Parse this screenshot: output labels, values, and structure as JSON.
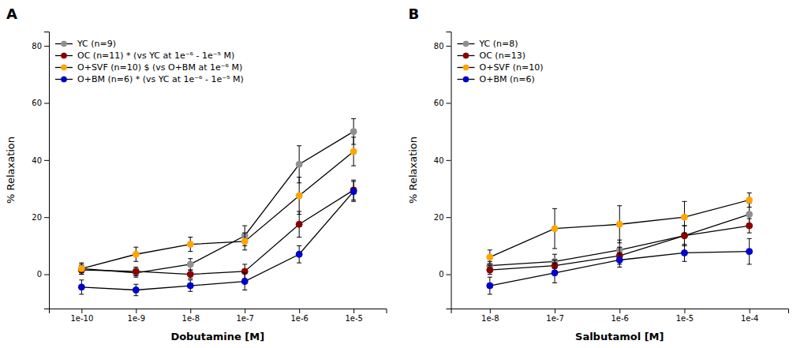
{
  "chart_data": [
    {
      "type": "line",
      "title": "A",
      "x_label": "Dobutamine [M]",
      "y_label": "% Relaxation",
      "categories": [
        "1e-10",
        "1e-9",
        "1e-8",
        "1e-7",
        "1e-6",
        "1e-5"
      ],
      "ylim": [
        -12,
        85
      ],
      "yticks": [
        0,
        20,
        40,
        60,
        80
      ],
      "grid": false,
      "legend": "upper left",
      "marker": "circle",
      "series": [
        {
          "name": "YC (n=9)",
          "color": "#909090",
          "values": [
            2.0,
            0.5,
            3.5,
            13.5,
            38.5,
            50.0
          ],
          "errors": [
            2.0,
            1.5,
            2.0,
            3.5,
            6.5,
            4.5
          ]
        },
        {
          "name": "OC (n=11) * (vs YC at 1e⁻⁶ - 1e⁻⁵ M)",
          "color": "#8B0000",
          "values": [
            1.5,
            1.0,
            0.0,
            1.0,
            17.5,
            29.5
          ],
          "errors": [
            1.5,
            1.5,
            1.5,
            2.5,
            4.5,
            3.5
          ]
        },
        {
          "name": "O+SVF (n=10) $ (vs O+BM at 1e⁻⁶ M)",
          "color": "#FFA500",
          "values": [
            2.0,
            7.0,
            10.5,
            11.5,
            27.5,
            43.0
          ],
          "errors": [
            1.5,
            2.5,
            2.5,
            3.0,
            6.5,
            5.0
          ]
        },
        {
          "name": "O+BM (n=6) * (vs YC at 1e⁻⁶ - 1e⁻⁵ M)",
          "color": "#0000CD",
          "values": [
            -4.5,
            -5.5,
            -4.0,
            -2.5,
            7.0,
            29.0
          ],
          "errors": [
            2.5,
            2.0,
            2.0,
            3.0,
            3.0,
            3.5
          ]
        }
      ]
    },
    {
      "type": "line",
      "title": "B",
      "x_label": "Salbutamol [M]",
      "y_label": "% Relaxation",
      "categories": [
        "1e-8",
        "1e-7",
        "1e-6",
        "1e-5",
        "1e-4"
      ],
      "ylim": [
        -12,
        85
      ],
      "yticks": [
        0,
        20,
        40,
        60,
        80
      ],
      "grid": false,
      "legend": "upper left",
      "marker": "circle",
      "series": [
        {
          "name": "YC (n=8)",
          "color": "#909090",
          "values": [
            3.0,
            4.5,
            8.5,
            13.5,
            21.0
          ],
          "errors": [
            1.5,
            2.5,
            3.5,
            3.5,
            4.0
          ]
        },
        {
          "name": "OC (n=13)",
          "color": "#8B0000",
          "values": [
            1.5,
            3.0,
            6.5,
            13.5,
            17.0
          ],
          "errors": [
            1.5,
            2.0,
            3.0,
            3.5,
            2.5
          ]
        },
        {
          "name": "O+SVF (n=10)",
          "color": "#FFA500",
          "values": [
            6.0,
            16.0,
            17.5,
            20.0,
            26.0
          ],
          "errors": [
            2.5,
            7.0,
            6.5,
            5.5,
            2.5
          ]
        },
        {
          "name": "O+BM (n=6)",
          "color": "#0000CD",
          "values": [
            -4.0,
            0.5,
            5.0,
            7.5,
            8.0
          ],
          "errors": [
            3.0,
            3.5,
            2.5,
            3.0,
            4.5
          ]
        }
      ]
    }
  ]
}
